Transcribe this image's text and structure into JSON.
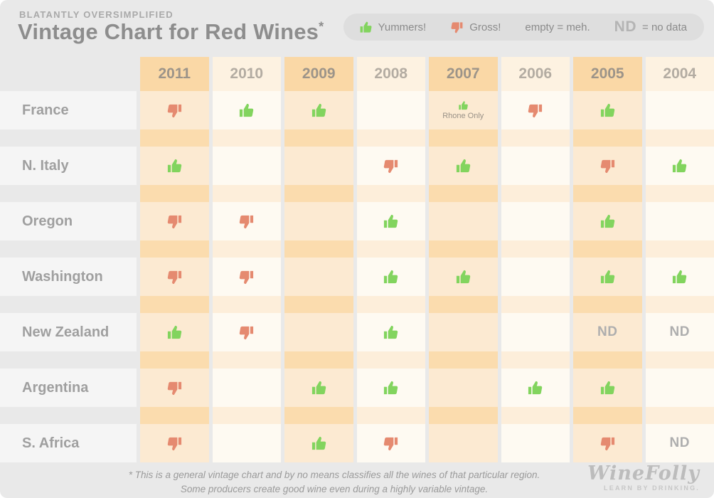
{
  "page": {
    "kicker": "BLATANTLY OVERSIMPLIFIED",
    "title": "Vintage Chart for Red Wines",
    "footnote_marker": "*"
  },
  "legend": {
    "yummers": "Yummers!",
    "gross": "Gross!",
    "empty": "empty = meh.",
    "nd": "ND",
    "nd_meaning": "= no data"
  },
  "table": {
    "years": [
      "2011",
      "2010",
      "2009",
      "2008",
      "2007",
      "2006",
      "2005",
      "2004"
    ],
    "highlighted_years": [
      "2011",
      "2009",
      "2007",
      "2005"
    ],
    "rows": [
      {
        "label": "France",
        "cells": [
          {
            "v": "down"
          },
          {
            "v": "up"
          },
          {
            "v": "up"
          },
          {
            "v": ""
          },
          {
            "v": "up",
            "note": "Rhone Only"
          },
          {
            "v": "down"
          },
          {
            "v": "up"
          },
          {
            "v": ""
          }
        ]
      },
      {
        "label": "N. Italy",
        "cells": [
          {
            "v": "up"
          },
          {
            "v": ""
          },
          {
            "v": ""
          },
          {
            "v": "down"
          },
          {
            "v": "up"
          },
          {
            "v": ""
          },
          {
            "v": "down"
          },
          {
            "v": "up"
          }
        ]
      },
      {
        "label": "Oregon",
        "cells": [
          {
            "v": "down"
          },
          {
            "v": "down"
          },
          {
            "v": ""
          },
          {
            "v": "up"
          },
          {
            "v": ""
          },
          {
            "v": ""
          },
          {
            "v": "up"
          },
          {
            "v": ""
          }
        ]
      },
      {
        "label": "Washington",
        "cells": [
          {
            "v": "down"
          },
          {
            "v": "down"
          },
          {
            "v": ""
          },
          {
            "v": "up"
          },
          {
            "v": "up"
          },
          {
            "v": ""
          },
          {
            "v": "up"
          },
          {
            "v": "up"
          }
        ]
      },
      {
        "label": "New Zealand",
        "cells": [
          {
            "v": "up"
          },
          {
            "v": "down"
          },
          {
            "v": ""
          },
          {
            "v": "up"
          },
          {
            "v": ""
          },
          {
            "v": ""
          },
          {
            "v": "nd"
          },
          {
            "v": "nd"
          }
        ]
      },
      {
        "label": "Argentina",
        "cells": [
          {
            "v": "down"
          },
          {
            "v": ""
          },
          {
            "v": "up"
          },
          {
            "v": "up"
          },
          {
            "v": ""
          },
          {
            "v": "up"
          },
          {
            "v": "up"
          },
          {
            "v": ""
          }
        ]
      },
      {
        "label": "S. Africa",
        "cells": [
          {
            "v": "down"
          },
          {
            "v": ""
          },
          {
            "v": "up"
          },
          {
            "v": "down"
          },
          {
            "v": ""
          },
          {
            "v": ""
          },
          {
            "v": "down"
          },
          {
            "v": "nd"
          }
        ]
      }
    ]
  },
  "footer": {
    "line1": "* This is a general vintage chart and by no means classifies all the wines of that particular region.",
    "line2": "Some producers create good wine even during a highly variable vintage.",
    "brand": "WineFolly",
    "brand_tagline": "LEARN BY DRINKING."
  },
  "colors": {
    "thumbs_up_green": "#82d45e",
    "thumbs_down_red": "#e58a70",
    "highlight_header": "#fad8a6",
    "plain_header": "#fdf2e1",
    "highlight_cell": "#fcead2",
    "plain_cell": "#fefaf2",
    "highlight_spacer": "#fbdcae",
    "plain_spacer": "#fdeeda",
    "page_background": "#e9e9e9",
    "text_gray": "#8d8d8d"
  },
  "chart_data": {
    "type": "table",
    "title": "Vintage Chart for Red Wines",
    "subtitle": "BLATANTLY OVERSIMPLIFIED",
    "columns": [
      "2011",
      "2010",
      "2009",
      "2008",
      "2007",
      "2006",
      "2005",
      "2004"
    ],
    "legend_meaning": {
      "up": "Yummers! (good vintage)",
      "down": "Gross! (bad vintage)",
      "empty": "meh.",
      "ND": "no data"
    },
    "rows": [
      {
        "region": "France",
        "ratings": [
          "gross",
          "yummers",
          "yummers",
          "meh",
          "yummers (Rhone Only)",
          "gross",
          "yummers",
          "meh"
        ]
      },
      {
        "region": "N. Italy",
        "ratings": [
          "yummers",
          "meh",
          "meh",
          "gross",
          "yummers",
          "meh",
          "gross",
          "yummers"
        ]
      },
      {
        "region": "Oregon",
        "ratings": [
          "gross",
          "gross",
          "meh",
          "yummers",
          "meh",
          "meh",
          "yummers",
          "meh"
        ]
      },
      {
        "region": "Washington",
        "ratings": [
          "gross",
          "gross",
          "meh",
          "yummers",
          "yummers",
          "meh",
          "yummers",
          "yummers"
        ]
      },
      {
        "region": "New Zealand",
        "ratings": [
          "yummers",
          "gross",
          "meh",
          "yummers",
          "meh",
          "meh",
          "no data",
          "no data"
        ]
      },
      {
        "region": "Argentina",
        "ratings": [
          "gross",
          "meh",
          "yummers",
          "yummers",
          "meh",
          "yummers",
          "yummers",
          "meh"
        ]
      },
      {
        "region": "S. Africa",
        "ratings": [
          "gross",
          "meh",
          "yummers",
          "gross",
          "meh",
          "meh",
          "gross",
          "no data"
        ]
      }
    ],
    "footnote": "* This is a general vintage chart and by no means classifies all the wines of that particular region. Some producers create good wine even during a highly variable vintage."
  }
}
